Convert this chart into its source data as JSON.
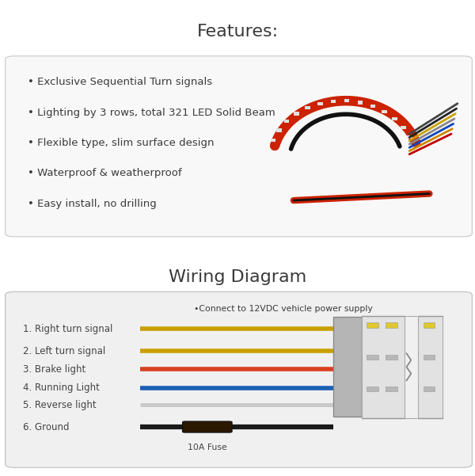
{
  "bg_top": "#f5f5f5",
  "bg_mid": "#e8e8e8",
  "bg_wire_box": "#f0f0f0",
  "features_title": "Features:",
  "wiring_title": "Wiring Diagram",
  "features": [
    "Exclusive Sequential Turn signals",
    "Lighting by 3 rows, total 321 LED Solid Beam",
    "Flexible type, slim surface design",
    "Waterproof & weatherproof",
    "Easy install, no drilling"
  ],
  "wires": [
    {
      "label": "1. Right turn signal",
      "color": "#c8a000",
      "lw": 4.0
    },
    {
      "label": "2. Left turn signal",
      "color": "#c8a000",
      "lw": 4.0
    },
    {
      "label": "3. Brake light",
      "color": "#d94020",
      "lw": 4.0
    },
    {
      "label": "4. Running Light",
      "color": "#1a5fb4",
      "lw": 4.0
    },
    {
      "label": "5. Reverse light",
      "color": "#c8c8c8",
      "lw": 3.5
    },
    {
      "label": "6. Ground",
      "color": "#1a1a1a",
      "lw": 4.5
    }
  ],
  "connect_label": "•Connect to 12VDC vehicle power supply",
  "fuse_label": "10A Fuse",
  "title_fontsize": 16,
  "body_fontsize": 9.5,
  "wire_label_fontsize": 8.5
}
